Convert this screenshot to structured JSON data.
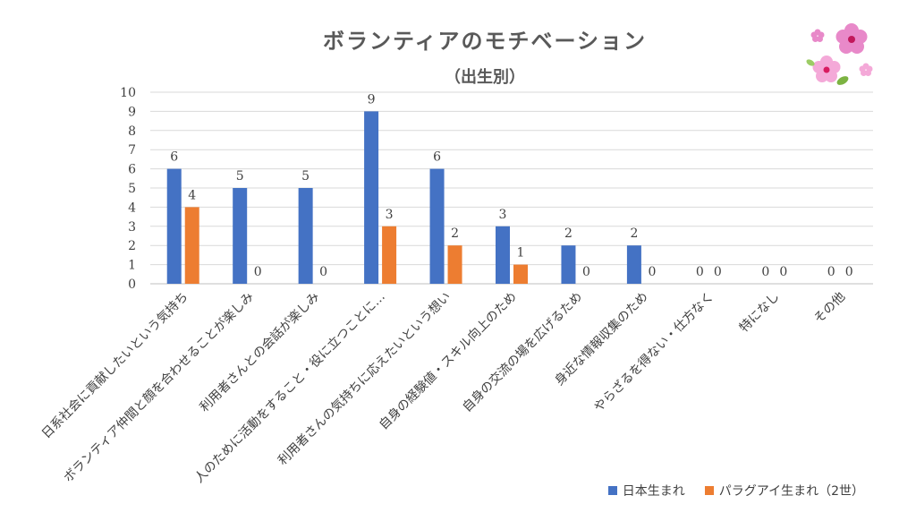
{
  "chart_data": {
    "type": "bar",
    "title": "ボランティアのモチベーション",
    "subtitle": "（出生別）",
    "categories": [
      "日系社会に貢献したいという気持ち",
      "ボランティア仲間と顔を合わせることが楽しみ",
      "利用者さんとの会話が楽しみ",
      "人のために活動をすること・役に立つことに…",
      "利用者さんの気持ちに応えたいという想い",
      "自身の経験値・スキル向上のため",
      "自身の交流の場を広げるため",
      "身近な情報収集のため",
      "やらざるを得ない・仕方なく",
      "特になし",
      "その他"
    ],
    "series": [
      {
        "name": "日本生まれ",
        "color": "#4472C4",
        "values": [
          6,
          5,
          5,
          9,
          6,
          3,
          2,
          2,
          0,
          0,
          0
        ]
      },
      {
        "name": "パラグアイ生まれ（2世）",
        "color": "#ED7D31",
        "values": [
          4,
          0,
          0,
          3,
          2,
          1,
          0,
          0,
          0,
          0,
          0
        ]
      }
    ],
    "yticks": [
      "0",
      "1",
      "2",
      "3",
      "4",
      "5",
      "6",
      "7",
      "8",
      "9",
      "10"
    ],
    "ylim": [
      0,
      10
    ],
    "grid": true,
    "legend_position": "bottom-right"
  },
  "decoration": {
    "icon": "cherry-blossom-icon",
    "colors": [
      "#E889C9",
      "#F4A9D8",
      "#7CB342"
    ]
  }
}
